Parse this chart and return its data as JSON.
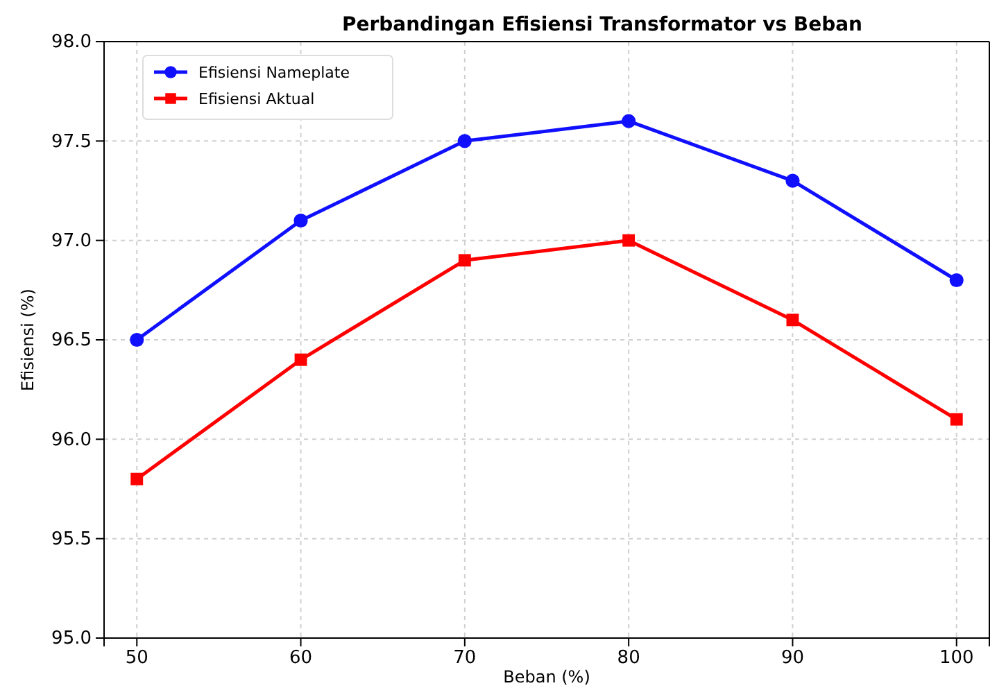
{
  "chart_data": {
    "type": "line",
    "title": "Perbandingan Efisiensi Transformator vs Beban",
    "xlabel": "Beban (%)",
    "ylabel": "Efisiensi (%)",
    "x": [
      50,
      60,
      70,
      80,
      90,
      100
    ],
    "series": [
      {
        "name": "Efisiensi Nameplate",
        "color": "#1010ff",
        "marker": "circle",
        "values": [
          96.5,
          97.1,
          97.5,
          97.6,
          97.3,
          96.8
        ]
      },
      {
        "name": "Efisiensi Aktual",
        "color": "#ff0000",
        "marker": "square",
        "values": [
          95.8,
          96.4,
          96.9,
          97.0,
          96.6,
          96.1
        ]
      }
    ],
    "xlim": [
      48,
      102
    ],
    "xticks": [
      50,
      60,
      70,
      80,
      90,
      100
    ],
    "ylim": [
      95,
      98
    ],
    "yticks": [
      {
        "value": 95,
        "label": "95.0"
      },
      95.5,
      {
        "value": 96,
        "label": "96.0"
      },
      96.5,
      {
        "value": 97,
        "label": "97.0"
      },
      97.5,
      {
        "value": 98,
        "label": "98.0"
      }
    ],
    "grid": true,
    "legend": "top left",
    "line_style": "solid"
  }
}
